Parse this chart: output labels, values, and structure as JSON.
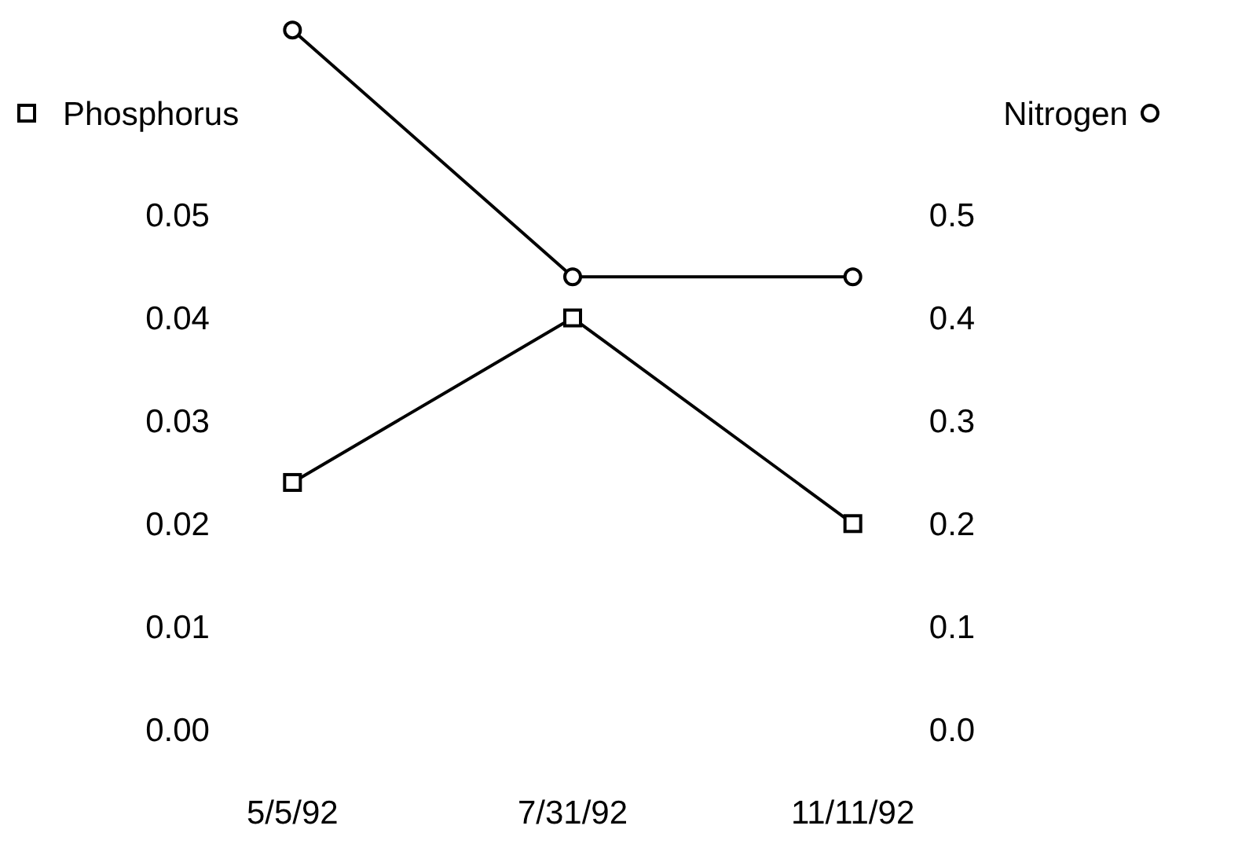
{
  "chart_data": {
    "type": "line",
    "categories": [
      "5/5/92",
      "7/31/92",
      "11/11/92"
    ],
    "ylabel": "Phosphorus",
    "y2label": "Nitrogen",
    "series": [
      {
        "color": "#000000",
        "marker": "square",
        "values": [
          0.024,
          0.04,
          0.02
        ]
      },
      {
        "color": "#000000",
        "marker": "circle",
        "axis": "y2",
        "values": [
          0.68,
          0.44,
          0.44
        ]
      }
    ],
    "ylim": [
      0,
      0.07
    ],
    "yticks": [
      {
        "value": 0,
        "label": "0.00"
      },
      {
        "value": 0.01,
        "label": "0.01"
      },
      {
        "value": 0.02,
        "label": "0.02"
      },
      {
        "value": 0.03,
        "label": "0.03"
      },
      {
        "value": 0.04,
        "label": "0.04"
      },
      {
        "value": 0.05,
        "label": "0.05"
      }
    ],
    "y2lim": [
      0,
      0.7
    ],
    "y2ticks": [
      {
        "value": 0,
        "label": "0.0"
      },
      {
        "value": 0.1,
        "label": "0.1"
      },
      {
        "value": 0.2,
        "label": "0.2"
      },
      {
        "value": 0.3,
        "label": "0.3"
      },
      {
        "value": 0.4,
        "label": "0.4"
      },
      {
        "value": 0.5,
        "label": "0.5"
      }
    ],
    "grid": false,
    "line_style": "solid"
  }
}
